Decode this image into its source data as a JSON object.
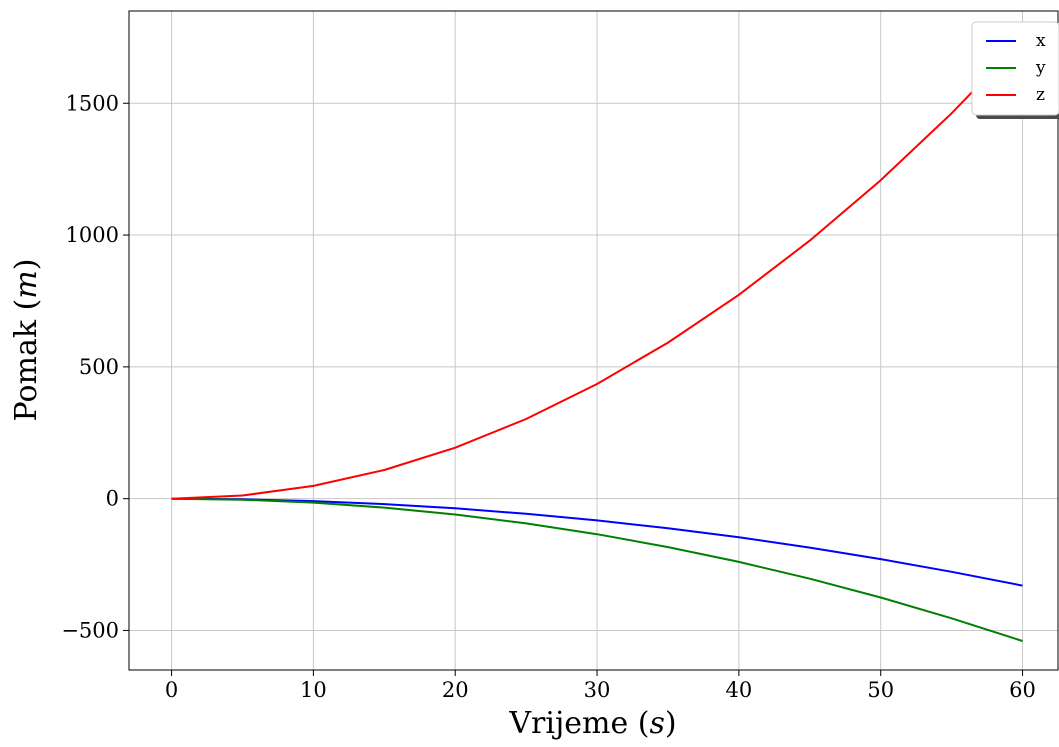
{
  "chart_data": {
    "type": "line",
    "title": "",
    "xlabel": "Vrijeme (s)",
    "ylabel": "Pomak (m)",
    "xlabel_parts": {
      "text": "Vrijeme ",
      "open": "(",
      "unit": "s",
      "close": ")"
    },
    "ylabel_parts": {
      "text": "Pomak ",
      "open": "(",
      "unit": "m",
      "close": ")"
    },
    "xlim": [
      -3,
      62.5
    ],
    "ylim": [
      -650,
      1850
    ],
    "xticks": [
      0,
      10,
      20,
      30,
      40,
      50,
      60
    ],
    "yticks": [
      -500,
      0,
      500,
      1000,
      1500
    ],
    "ytick_labels": [
      "−500",
      "0",
      "500",
      "1000",
      "1500"
    ],
    "xtick_labels": [
      "0",
      "10",
      "20",
      "30",
      "40",
      "50",
      "60"
    ],
    "grid": true,
    "legend_position": "top-right",
    "x": [
      0,
      5,
      10,
      15,
      20,
      25,
      30,
      35,
      40,
      45,
      50,
      55,
      60
    ],
    "series": [
      {
        "name": "x",
        "color": "#0000ff",
        "values": [
          0,
          -2.3,
          -9.2,
          -20.6,
          -36.7,
          -57.3,
          -82.5,
          -112.3,
          -146.7,
          -185.6,
          -229.2,
          -277.3,
          -330
        ]
      },
      {
        "name": "y",
        "color": "#008000",
        "values": [
          0,
          -3.8,
          -15,
          -33.8,
          -60,
          -93.8,
          -135,
          -183.8,
          -240,
          -303.8,
          -375,
          -453.8,
          -540
        ]
      },
      {
        "name": "z",
        "color": "#ff0000",
        "values": [
          0,
          12.1,
          48.3,
          108.8,
          193.3,
          302.1,
          435,
          592.1,
          773.3,
          978.8,
          1208.3,
          1462.1,
          1740
        ]
      }
    ]
  }
}
